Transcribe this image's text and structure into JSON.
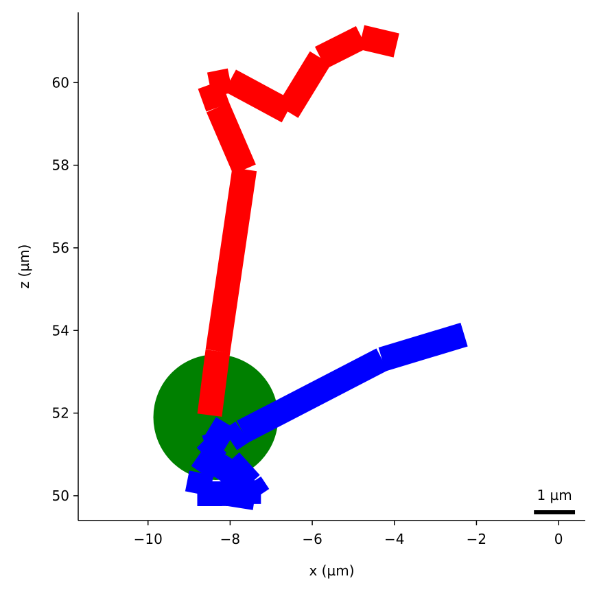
{
  "chart_data": {
    "type": "line",
    "title": "",
    "xlabel": "x (µm)",
    "ylabel": "z (µm)",
    "xlim": [
      -11.7,
      0.65
    ],
    "ylim": [
      49.4,
      61.7
    ],
    "xticks": [
      -10,
      -8,
      -6,
      -4,
      -2,
      0
    ],
    "yticks": [
      50,
      52,
      54,
      56,
      58,
      60
    ],
    "xtick_labels": [
      "−10",
      "−8",
      "−6",
      "−4",
      "−2",
      "0"
    ],
    "ytick_labels": [
      "50",
      "52",
      "54",
      "56",
      "58",
      "60"
    ],
    "grid": false,
    "legend": null,
    "circle": {
      "cx": -8.35,
      "cy": 51.9,
      "r": 1.52,
      "color": "#008000"
    },
    "series": [
      {
        "color": "#ff0000",
        "points": [
          [
            -8.5,
            51.95
          ],
          [
            -8.3,
            53.5
          ],
          [
            -7.65,
            57.9
          ],
          [
            -8.3,
            59.4
          ],
          [
            -8.5,
            59.95
          ],
          [
            -8.0,
            60.05
          ],
          [
            -6.6,
            59.3
          ],
          [
            -5.8,
            60.6
          ],
          [
            -4.8,
            61.1
          ],
          [
            -3.95,
            60.9
          ]
        ]
      },
      {
        "color": "#0000ff",
        "points": [
          [
            -8.5,
            51.65
          ],
          [
            -8.0,
            51.35
          ],
          [
            -7.7,
            51.55
          ],
          [
            -4.3,
            53.3
          ],
          [
            -2.3,
            53.9
          ]
        ]
      },
      {
        "color": "#0000ff",
        "points": [
          [
            -8.4,
            51.55
          ],
          [
            -8.3,
            51.25
          ],
          [
            -8.6,
            50.95
          ],
          [
            -8.05,
            50.6
          ],
          [
            -7.55,
            50.1
          ],
          [
            -7.55,
            49.8
          ]
        ]
      },
      {
        "color": "#0000ff",
        "points": [
          [
            -8.35,
            51.05
          ],
          [
            -8.7,
            50.55
          ],
          [
            -8.8,
            50.05
          ],
          [
            -8.05,
            50.05
          ],
          [
            -7.4,
            49.95
          ]
        ]
      },
      {
        "color": "#0000ff",
        "points": [
          [
            -8.0,
            50.85
          ],
          [
            -7.5,
            50.3
          ],
          [
            -7.3,
            50.0
          ]
        ]
      },
      {
        "color": "#0000ff",
        "points": [
          [
            -8.5,
            50.2
          ],
          [
            -8.5,
            49.75
          ]
        ]
      },
      {
        "color": "#0000ff",
        "points": [
          [
            -7.8,
            50.2
          ],
          [
            -7.8,
            49.75
          ]
        ]
      }
    ],
    "scale_bar": {
      "label": "1 µm",
      "length": 1,
      "x_end": 0.4,
      "y": 49.6
    }
  }
}
